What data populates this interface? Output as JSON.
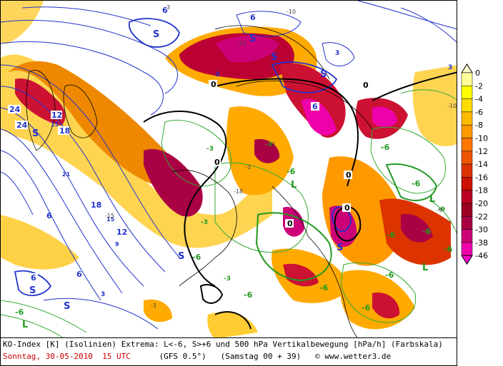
{
  "footer": {
    "line1": "KO-Index [K] (Isolinien) Extrema: L<-6, S>+6 und 500 hPa Vertikalbewegung [hPa/h] (Farbskala)",
    "date": "Sonntag, 30-05-2010  15 UTC",
    "model": "(GFS 0.5°)",
    "run": "(Samstag 00 + 39)",
    "copyright": "© www.wetter3.de"
  },
  "colorscale": {
    "labels": [
      "0",
      "-2",
      "-4",
      "-6",
      "-8",
      "-10",
      "-12",
      "-14",
      "-16",
      "-18",
      "-20",
      "-22",
      "-30",
      "-38",
      "-46"
    ],
    "colors": [
      "#ffff99",
      "#ffff00",
      "#ffdd00",
      "#ffbb00",
      "#ff9900",
      "#ff7700",
      "#ee5500",
      "#dd3300",
      "#cc1100",
      "#bb0022",
      "#990022",
      "#aa0044",
      "#cc0077",
      "#ee00aa"
    ]
  },
  "map": {
    "blue_labels": [
      "6",
      "S",
      "6",
      "3",
      "24",
      "24",
      "12",
      "15",
      "18",
      "21",
      "6",
      "15",
      "18",
      "12",
      "9",
      "6",
      "6",
      "S",
      "S",
      "3",
      "S",
      "S",
      "3",
      "6",
      "3",
      "0"
    ],
    "green_labels": [
      "-6",
      "-6",
      "-6",
      "-3",
      "-3",
      "-6",
      "L",
      "L",
      "-6",
      "-6",
      "-3",
      "-6",
      "-9",
      "-6",
      "-6",
      "L",
      "-6",
      "L",
      "-6",
      "-3",
      "-6"
    ],
    "black_labels": [
      "0",
      "0",
      "0",
      "0",
      "0",
      "0"
    ],
    "extrema_labels": [
      "S",
      "S",
      "S",
      "S"
    ],
    "scale_values": [
      "-3",
      "-3",
      "-9",
      "-10",
      "-10",
      "-10",
      "-15",
      "-18",
      "-3",
      "3"
    ]
  }
}
